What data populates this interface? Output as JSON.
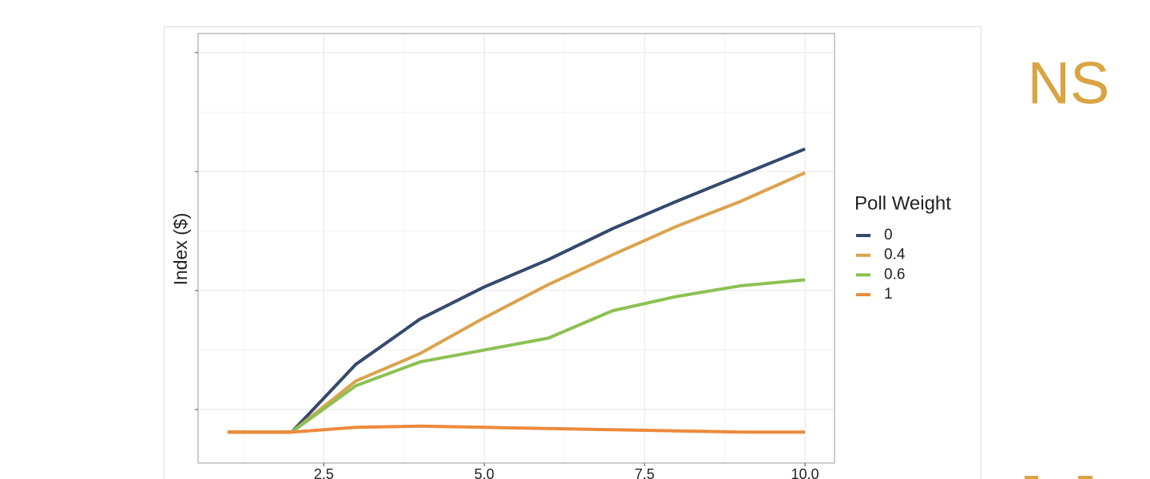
{
  "slide_text": "NS",
  "chart_data": {
    "type": "line",
    "y_label": "Index ($)",
    "legend_title": "Poll Weight",
    "x": [
      1,
      2,
      3,
      4,
      5,
      6,
      7,
      8,
      9,
      10
    ],
    "xlim": [
      0.54,
      10.46
    ],
    "xticks": [
      {
        "value": 2.5,
        "label": "2.5"
      },
      {
        "value": 5,
        "label": "5.0"
      },
      {
        "value": 7.5,
        "label": "7.5"
      },
      {
        "value": 10,
        "label": "10.0"
      }
    ],
    "ylim": [
      0.55,
      4.16
    ],
    "yticks": [
      1,
      2,
      3,
      4
    ],
    "grid": true,
    "series": [
      {
        "name": "0",
        "color": "#34496e",
        "values": [
          0.81,
          0.81,
          1.38,
          1.76,
          2.03,
          2.26,
          2.52,
          2.75,
          2.97,
          3.19
        ]
      },
      {
        "name": "0.4",
        "color": "#dba34d",
        "values": [
          0.81,
          0.81,
          1.24,
          1.47,
          1.77,
          2.05,
          2.3,
          2.54,
          2.75,
          2.99
        ]
      },
      {
        "name": "0.6",
        "color": "#8cc152",
        "values": [
          0.81,
          0.81,
          1.2,
          1.4,
          1.5,
          1.6,
          1.83,
          1.95,
          2.04,
          2.09
        ]
      },
      {
        "name": "1",
        "color": "#ee8a3c",
        "values": [
          0.81,
          0.81,
          0.85,
          0.86,
          0.85,
          0.84,
          0.83,
          0.82,
          0.81,
          0.81
        ]
      }
    ]
  }
}
